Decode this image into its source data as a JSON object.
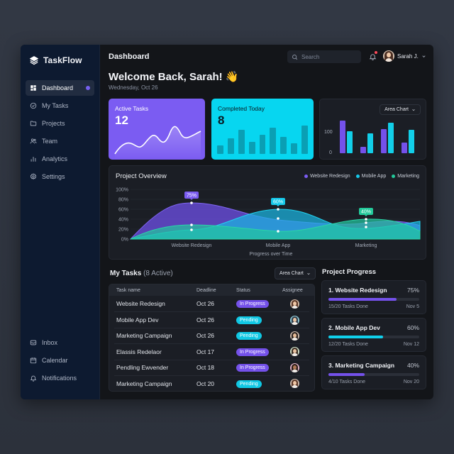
{
  "app": {
    "name": "TaskFlow"
  },
  "sidebar": {
    "items": [
      {
        "label": "Dashboard",
        "icon": "grid-icon",
        "active": true
      },
      {
        "label": "My Tasks",
        "icon": "check-circle-icon"
      },
      {
        "label": "Projects",
        "icon": "folder-icon"
      },
      {
        "label": "Team",
        "icon": "users-icon"
      },
      {
        "label": "Analytics",
        "icon": "bar-chart-icon"
      },
      {
        "label": "Settings",
        "icon": "gear-icon"
      }
    ],
    "bottom_items": [
      {
        "label": "Inbox",
        "icon": "inbox-icon"
      },
      {
        "label": "Calendar",
        "icon": "calendar-icon"
      },
      {
        "label": "Notifications",
        "icon": "bell-icon"
      }
    ]
  },
  "header": {
    "title": "Dashboard",
    "search_placeholder": "Search",
    "user_name": "Sarah J.",
    "welcome": "Welcome Back, Sarah! 👋",
    "date": "Wednesday, Oct 26"
  },
  "stats": {
    "active": {
      "label": "Active Tasks",
      "value": "12"
    },
    "completed": {
      "label": "Completed Today",
      "value": "8",
      "bars": [
        30,
        55,
        85,
        42,
        68,
        92,
        60,
        38,
        100
      ]
    },
    "bar_card": {
      "dropdown": "Area Chart",
      "y_ticks": [
        "100",
        "0"
      ],
      "groups": [
        [
          150,
          100
        ],
        [
          30,
          90
        ],
        [
          110,
          140
        ],
        [
          50,
          105
        ]
      ]
    }
  },
  "overview": {
    "title": "Project Overview",
    "x_title": "Progress over Time",
    "legend": [
      {
        "label": "Website Redesign",
        "color": "#7b5cf2"
      },
      {
        "label": "Mobile App",
        "color": "#16c9ea"
      },
      {
        "label": "Marketing",
        "color": "#23c99a"
      }
    ],
    "y_ticks": [
      "100%",
      "80%",
      "60%",
      "40%",
      "20%",
      "0%"
    ],
    "x_ticks": [
      "Website Redesign",
      "Mobile App",
      "Marketing"
    ],
    "callouts": [
      "75%",
      "60%",
      "40%"
    ]
  },
  "chart_data": {
    "type": "area",
    "title": "Project Overview",
    "xlabel": "Progress over Time",
    "ylabel": "",
    "ylim": [
      0,
      100
    ],
    "categories": [
      "Website Redesign",
      "Mobile App",
      "Marketing"
    ],
    "series": [
      {
        "name": "Website Redesign",
        "values": [
          75,
          42,
          30
        ]
      },
      {
        "name": "Mobile App",
        "values": [
          18,
          60,
          20
        ]
      },
      {
        "name": "Marketing",
        "values": [
          28,
          15,
          40
        ]
      }
    ],
    "annotations": [
      "75%",
      "60%",
      "40%"
    ],
    "grid": true,
    "legend_position": "top-right"
  },
  "tasks": {
    "title": "My Tasks",
    "count": "(8 Active)",
    "dropdown": "Area Chart",
    "columns": [
      "Task name",
      "Deadline",
      "Status",
      "Assignee"
    ],
    "rows": [
      {
        "name": "Website Redesign",
        "deadline": "Oct 26",
        "status": "In Progress",
        "kind": "progress"
      },
      {
        "name": "Mobile App Dev",
        "deadline": "Oct 26",
        "status": "Pending",
        "kind": "pending"
      },
      {
        "name": "Marketing Campaign",
        "deadline": "Oct 26",
        "status": "Pending",
        "kind": "pending"
      },
      {
        "name": "Elassis Redelaor",
        "deadline": "Oct 17",
        "status": "In Progress",
        "kind": "progress"
      },
      {
        "name": "Pendling Ewvender",
        "deadline": "Oct 18",
        "status": "In Progress",
        "kind": "progress"
      },
      {
        "name": "Marketing Campaign",
        "deadline": "Oct 20",
        "status": "Pending",
        "kind": "pending"
      }
    ]
  },
  "progress": {
    "title": "Project Progress",
    "items": [
      {
        "name": "1. Website Redesign",
        "pct": "75%",
        "done": "15/20 Tasks Done",
        "due": "Nov 5",
        "fill": 75,
        "color": "#7451ea"
      },
      {
        "name": "2. Mobile App Dev",
        "pct": "60%",
        "done": "12/20 Tasks Done",
        "due": "Nov 12",
        "fill": 60,
        "color": "#10d0ec"
      },
      {
        "name": "3. Marketing Campaign",
        "pct": "40%",
        "done": "4/10 Tasks Done",
        "due": "Nov 20",
        "fill": 40,
        "color": "#7451ea"
      }
    ]
  }
}
